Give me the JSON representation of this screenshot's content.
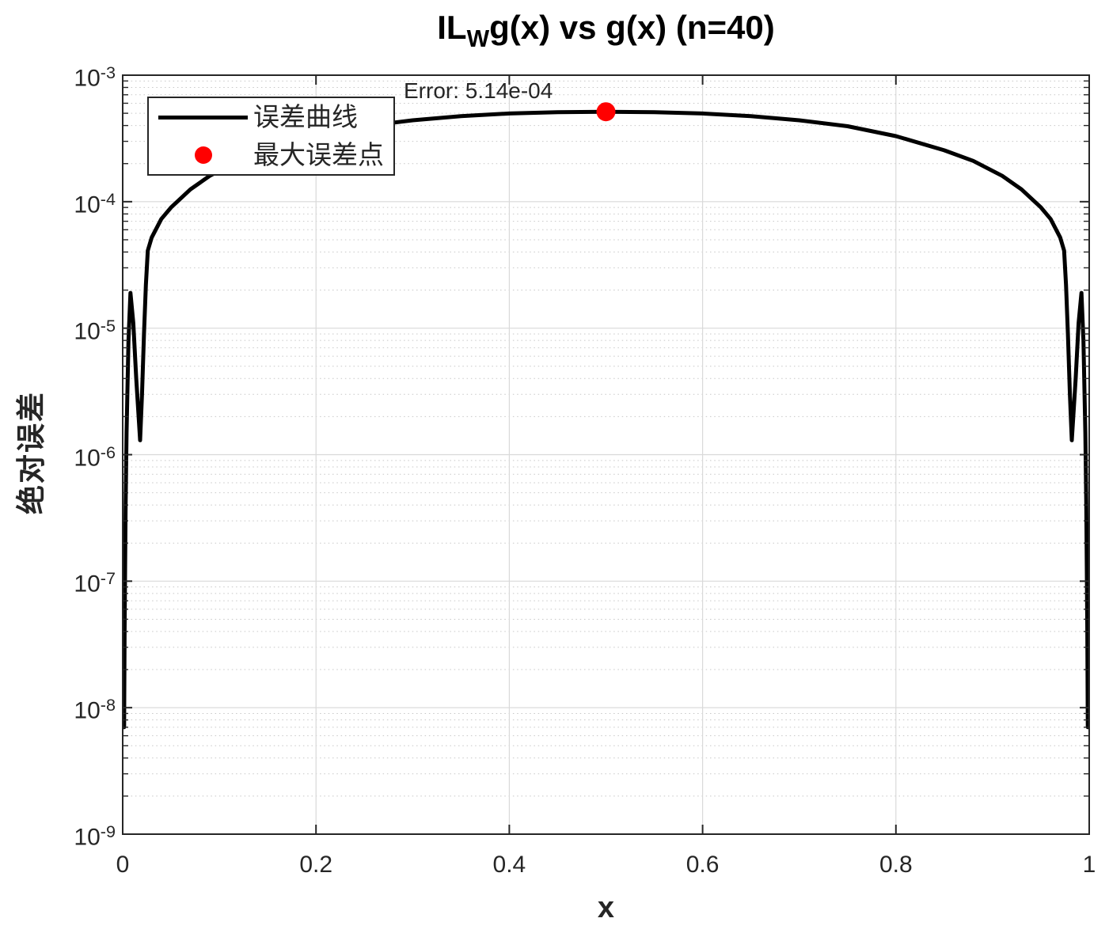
{
  "colors": {
    "curve": "#000000",
    "max_point": "#ff0000",
    "grid_major": "#d9d9d9",
    "grid_minor": "#c7c7c7",
    "axis": "#262626",
    "text": "#262626",
    "background": "#ffffff"
  },
  "chart_data": {
    "type": "line",
    "title": "IL_Wg(x) vs g(x) (n=40)",
    "title_parts": {
      "prefix": "IL",
      "sub": "W",
      "suffix": "g(x) vs g(x) (n=40)"
    },
    "xlabel": "x",
    "ylabel": "绝对误差",
    "xlim": [
      0,
      1
    ],
    "ylim": [
      1e-09,
      0.001
    ],
    "yscale": "log",
    "grid": {
      "major": true,
      "minor_dotted": true
    },
    "x_ticks": [
      0,
      0.2,
      0.4,
      0.6,
      0.8,
      1
    ],
    "x_tick_labels": [
      "0",
      "0.2",
      "0.4",
      "0.6",
      "0.8",
      "1"
    ],
    "y_tick_exponents": [
      -3,
      -4,
      -5,
      -6,
      -7,
      -8,
      -9
    ],
    "annotation": {
      "text": "Error: 5.14e-04"
    },
    "max_point": {
      "x": 0.5,
      "y": 0.000514
    },
    "legend": {
      "position": "top-left",
      "entries": [
        {
          "label": "误差曲线",
          "marker": "line",
          "color": "#000000"
        },
        {
          "label": "最大误差点",
          "marker": "dot",
          "color": "#ff0000"
        }
      ]
    },
    "series": [
      {
        "name": "误差曲线",
        "color": "#000000",
        "width": 5,
        "points": [
          [
            0.0015,
            7e-09
          ],
          [
            0.002,
            4e-08
          ],
          [
            0.003,
            4e-07
          ],
          [
            0.004,
            1.5e-06
          ],
          [
            0.006,
            8e-06
          ],
          [
            0.008,
            1.9e-05
          ],
          [
            0.011,
            1.1e-05
          ],
          [
            0.014,
            4e-06
          ],
          [
            0.018,
            1.3e-06
          ],
          [
            0.02,
            3e-06
          ],
          [
            0.022,
            9e-06
          ],
          [
            0.024,
            2.2e-05
          ],
          [
            0.026,
            4.1e-05
          ],
          [
            0.03,
            5.2e-05
          ],
          [
            0.04,
            7.3e-05
          ],
          [
            0.05,
            9e-05
          ],
          [
            0.07,
            0.000125
          ],
          [
            0.09,
            0.00016
          ],
          [
            0.12,
            0.00021
          ],
          [
            0.15,
            0.000255
          ],
          [
            0.2,
            0.00033
          ],
          [
            0.25,
            0.000395
          ],
          [
            0.3,
            0.00044
          ],
          [
            0.35,
            0.000475
          ],
          [
            0.4,
            0.000498
          ],
          [
            0.45,
            0.00051
          ],
          [
            0.5,
            0.000514
          ],
          [
            0.55,
            0.00051
          ],
          [
            0.6,
            0.000498
          ],
          [
            0.65,
            0.000475
          ],
          [
            0.7,
            0.00044
          ],
          [
            0.75,
            0.000395
          ],
          [
            0.8,
            0.00033
          ],
          [
            0.85,
            0.000255
          ],
          [
            0.88,
            0.00021
          ],
          [
            0.91,
            0.00016
          ],
          [
            0.93,
            0.000125
          ],
          [
            0.95,
            9e-05
          ],
          [
            0.96,
            7.3e-05
          ],
          [
            0.97,
            5.2e-05
          ],
          [
            0.974,
            4.1e-05
          ],
          [
            0.976,
            2.2e-05
          ],
          [
            0.978,
            9e-06
          ],
          [
            0.98,
            3e-06
          ],
          [
            0.982,
            1.3e-06
          ],
          [
            0.986,
            4e-06
          ],
          [
            0.989,
            1.1e-05
          ],
          [
            0.992,
            1.9e-05
          ],
          [
            0.994,
            8e-06
          ],
          [
            0.996,
            1.5e-06
          ],
          [
            0.997,
            4e-07
          ],
          [
            0.998,
            4e-08
          ],
          [
            0.9985,
            7e-09
          ]
        ]
      }
    ]
  }
}
